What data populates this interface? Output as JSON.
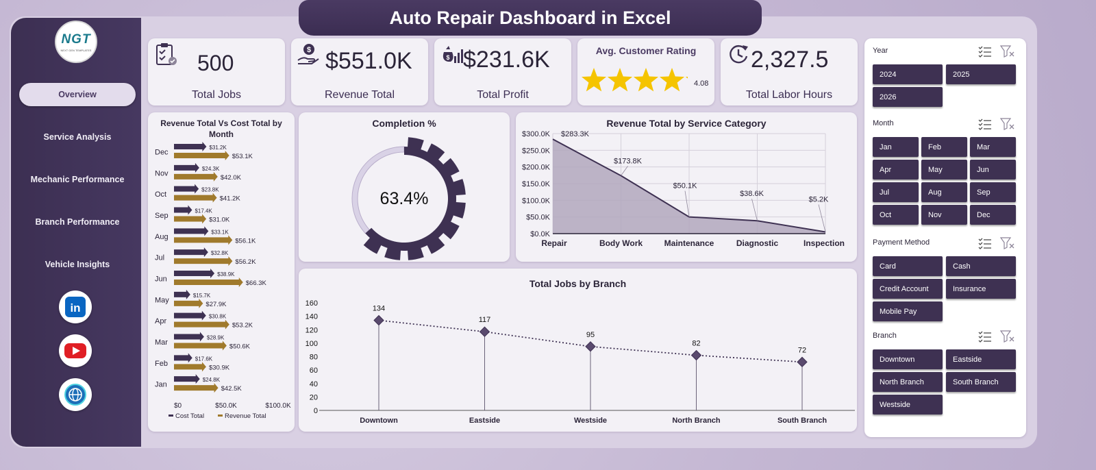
{
  "title": "Auto Repair Dashboard in Excel",
  "logo": {
    "text": "NGT",
    "subtext": "NEXT GEN TEMPLATES"
  },
  "nav": [
    {
      "label": "Overview",
      "active": true
    },
    {
      "label": "Service Analysis",
      "active": false
    },
    {
      "label": "Mechanic Performance",
      "active": false
    },
    {
      "label": "Branch Performance",
      "active": false
    },
    {
      "label": "Vehicle Insights",
      "active": false
    }
  ],
  "social": [
    {
      "icon": "linkedin-icon",
      "color": "#0a66c2"
    },
    {
      "icon": "youtube-icon",
      "color": "#e01f25"
    },
    {
      "icon": "globe-icon",
      "color": "#1d6fb8"
    }
  ],
  "kpis": {
    "total_jobs": {
      "value": "500",
      "label": "Total Jobs",
      "icon": "clipboard-check-icon"
    },
    "revenue_total": {
      "value": "$551.0K",
      "label": "Revenue Total",
      "icon": "money-hand-icon"
    },
    "total_profit": {
      "value": "$231.6K",
      "label": "Total Profit",
      "icon": "money-bag-chart-icon"
    },
    "rating": {
      "title": "Avg. Customer Rating",
      "value": "4.08",
      "stars": 4.08,
      "max": 5,
      "star_color": "#f5c400"
    },
    "labor_hours": {
      "value": "2,327.5",
      "label": "Total Labor Hours",
      "icon": "clock-refresh-icon"
    }
  },
  "colors": {
    "primary": "#3e3152",
    "accent": "#a07a2c",
    "light_track": "#d9d2e6"
  },
  "chart_data": [
    {
      "type": "bar",
      "title": "Revenue Total Vs Cost Total by Month",
      "categories": [
        "Jan",
        "Feb",
        "Mar",
        "Apr",
        "May",
        "Jun",
        "Jul",
        "Aug",
        "Sep",
        "Oct",
        "Nov",
        "Dec"
      ],
      "series": [
        {
          "name": "Cost Total",
          "values": [
            24.8,
            17.6,
            28.9,
            30.8,
            15.7,
            38.9,
            32.8,
            33.1,
            17.4,
            23.8,
            24.3,
            31.2
          ],
          "labels": [
            "$24.8K",
            "$17.6K",
            "$28.9K",
            "$30.8K",
            "$15.7K",
            "$38.9K",
            "$32.8K",
            "$33.1K",
            "$17.4K",
            "$23.8K",
            "$24.3K",
            "$31.2K"
          ]
        },
        {
          "name": "Revenue Total",
          "values": [
            42.5,
            30.9,
            50.6,
            53.2,
            27.9,
            66.3,
            56.2,
            56.1,
            31.0,
            41.2,
            42.0,
            53.1
          ],
          "labels": [
            "$42.5K",
            "$30.9K",
            "$50.6K",
            "$53.2K",
            "$27.9K",
            "$66.3K",
            "$56.2K",
            "$56.1K",
            "$31.0K",
            "$41.2K",
            "$42.0K",
            "$53.1K"
          ]
        }
      ],
      "xticks": [
        "$0",
        "$50.0K",
        "$100.0K"
      ],
      "xlim": [
        0,
        100
      ]
    },
    {
      "type": "pie",
      "title": "Completion %",
      "value": 63.4,
      "label": "63.4%"
    },
    {
      "type": "area",
      "title": "Revenue Total by Service Category",
      "categories": [
        "Repair",
        "Body Work",
        "Maintenance",
        "Diagnostic",
        "Inspection"
      ],
      "values": [
        283.3,
        173.8,
        50.1,
        38.6,
        5.2
      ],
      "labels": [
        "$283.3K",
        "$173.8K",
        "$50.1K",
        "$38.6K",
        "$5.2K"
      ],
      "yticks": [
        "$0.0K",
        "$50.0K",
        "$100.0K",
        "$150.0K",
        "$200.0K",
        "$250.0K",
        "$300.0K"
      ],
      "ylim": [
        0,
        300
      ]
    },
    {
      "type": "line",
      "title": "Total Jobs by Branch",
      "categories": [
        "Downtown",
        "Eastside",
        "Westside",
        "North Branch",
        "South Branch"
      ],
      "values": [
        134,
        117,
        95,
        82,
        72
      ],
      "yticks": [
        "0",
        "20",
        "40",
        "60",
        "80",
        "100",
        "120",
        "140",
        "160"
      ],
      "ylim": [
        0,
        160
      ]
    }
  ],
  "slicers": [
    {
      "title": "Year",
      "items": [
        "2024",
        "2025",
        "2026"
      ],
      "cols": 2
    },
    {
      "title": "Month",
      "items": [
        "Jan",
        "Feb",
        "Mar",
        "Apr",
        "May",
        "Jun",
        "Jul",
        "Aug",
        "Sep",
        "Oct",
        "Nov",
        "Dec"
      ],
      "cols": 3
    },
    {
      "title": "Payment Method",
      "items": [
        "Card",
        "Cash",
        "Credit Account",
        "Insurance",
        "Mobile Pay"
      ],
      "cols": 2
    },
    {
      "title": "Branch",
      "items": [
        "Downtown",
        "Eastside",
        "North Branch",
        "South Branch",
        "Westside"
      ],
      "cols": 2
    }
  ]
}
